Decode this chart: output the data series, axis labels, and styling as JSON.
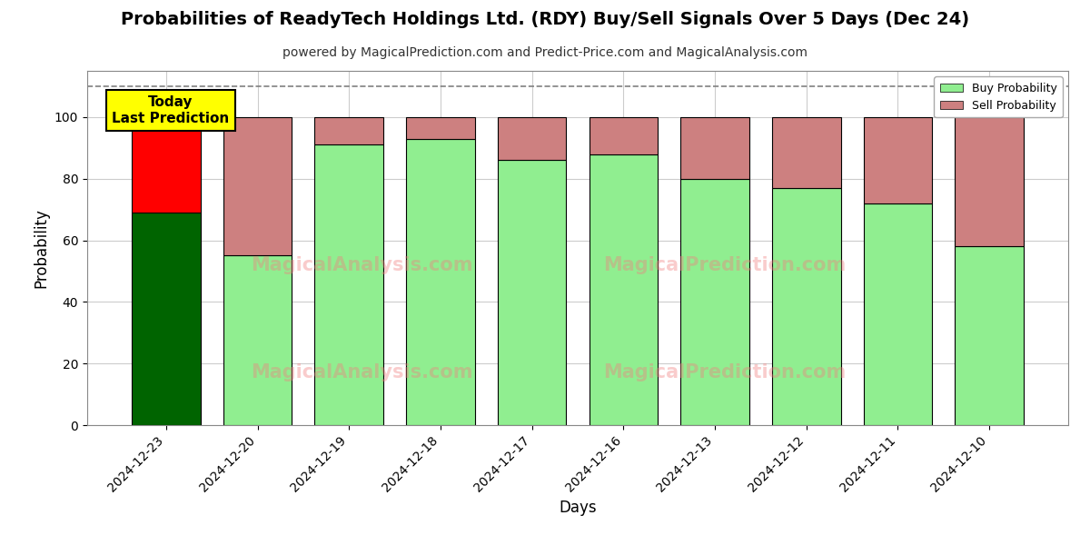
{
  "title": "Probabilities of ReadyTech Holdings Ltd. (RDY) Buy/Sell Signals Over 5 Days (Dec 24)",
  "subtitle": "powered by MagicalPrediction.com and Predict-Price.com and MagicalAnalysis.com",
  "xlabel": "Days",
  "ylabel": "Probability",
  "categories": [
    "2024-12-23",
    "2024-12-20",
    "2024-12-19",
    "2024-12-18",
    "2024-12-17",
    "2024-12-16",
    "2024-12-13",
    "2024-12-12",
    "2024-12-11",
    "2024-12-10"
  ],
  "buy_values": [
    69,
    55,
    91,
    93,
    86,
    88,
    80,
    77,
    72,
    58
  ],
  "sell_values": [
    31,
    45,
    9,
    7,
    14,
    12,
    20,
    23,
    28,
    42
  ],
  "today_bar_buy_color": "#006400",
  "today_bar_sell_color": "#FF0000",
  "other_bar_buy_color": "#90EE90",
  "other_bar_sell_color": "#CD8080",
  "bar_edge_color": "#000000",
  "dashed_line_y": 110,
  "ylim": [
    0,
    115
  ],
  "yticks": [
    0,
    20,
    40,
    60,
    80,
    100
  ],
  "grid_color": "#cccccc",
  "legend_buy_color": "#90EE90",
  "legend_sell_color": "#CD8080",
  "today_annotation": "Today\nLast Prediction",
  "background_color": "#ffffff",
  "bar_width": 0.75,
  "title_fontsize": 14,
  "subtitle_fontsize": 10
}
